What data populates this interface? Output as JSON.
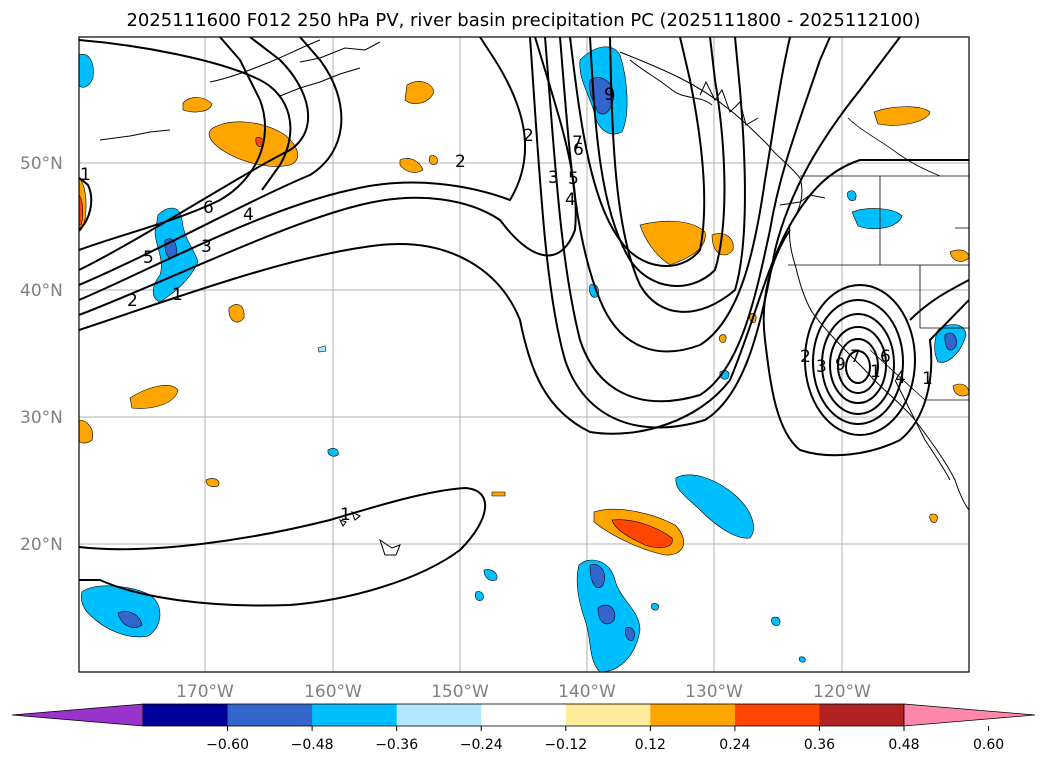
{
  "title": "2025111600 F012 250 hPa PV, river basin precipitation PC (2025111800 - 2025112100)",
  "lat_labels": [
    "50°N",
    "40°N",
    "30°N",
    "20°N"
  ],
  "lon_labels": [
    "170°W",
    "160°W",
    "150°W",
    "140°W",
    "130°W",
    "120°W"
  ],
  "colorbar": {
    "colors": [
      "#9933cc",
      "#000099",
      "#3366cc",
      "#00bfff",
      "#b3e6ff",
      "#ffffff",
      "#ffeb99",
      "#ffa500",
      "#ff4500",
      "#b22222",
      "#ff88aa"
    ],
    "tick_labels": [
      "−0.60",
      "−0.48",
      "−0.36",
      "−0.24",
      "−0.12",
      "0.12",
      "0.24",
      "0.36",
      "0.48",
      "0.60"
    ]
  },
  "contour_labels": [
    "1",
    "2",
    "3",
    "4",
    "5",
    "6",
    "1",
    "2",
    "2",
    "3",
    "4",
    "5",
    "6",
    "7",
    "9",
    "1",
    "2",
    "3",
    "6",
    "7",
    "9",
    "1",
    "4",
    "1"
  ],
  "colors": {
    "land_outline": "#000000",
    "grid": "#b0b0b0",
    "pv_contour": "#000000"
  }
}
